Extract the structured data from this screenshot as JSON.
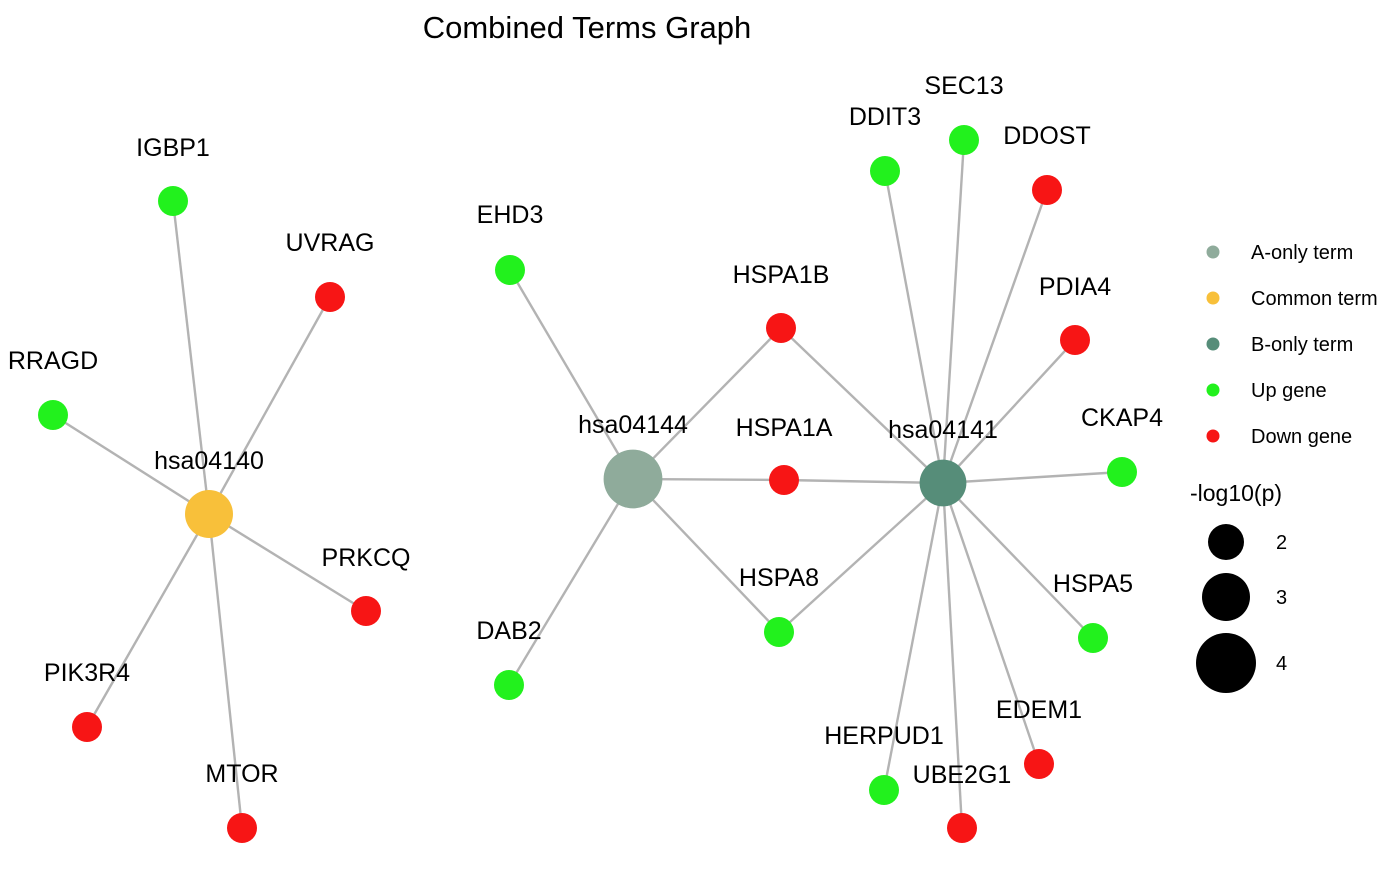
{
  "title": "Combined Terms Graph",
  "colors": {
    "a_only_term": "#8fab9b",
    "common_term": "#f8c03a",
    "b_only_term": "#568d79",
    "up_gene": "#22f11d",
    "down_gene": "#f71515",
    "edge": "#b3b3b3"
  },
  "nodes": [
    {
      "id": "hsa04140",
      "label": "hsa04140",
      "type": "common_term",
      "neglog10p": 3.0
    },
    {
      "id": "hsa04144",
      "label": "hsa04144",
      "type": "a_only_term",
      "neglog10p": 3.9
    },
    {
      "id": "hsa04141",
      "label": "hsa04141",
      "type": "b_only_term",
      "neglog10p": 2.9
    },
    {
      "id": "IGBP1",
      "label": "IGBP1",
      "type": "up_gene"
    },
    {
      "id": "UVRAG",
      "label": "UVRAG",
      "type": "down_gene"
    },
    {
      "id": "RRAGD",
      "label": "RRAGD",
      "type": "up_gene"
    },
    {
      "id": "PRKCQ",
      "label": "PRKCQ",
      "type": "down_gene"
    },
    {
      "id": "PIK3R4",
      "label": "PIK3R4",
      "type": "down_gene"
    },
    {
      "id": "MTOR",
      "label": "MTOR",
      "type": "down_gene"
    },
    {
      "id": "EHD3",
      "label": "EHD3",
      "type": "up_gene"
    },
    {
      "id": "DAB2",
      "label": "DAB2",
      "type": "up_gene"
    },
    {
      "id": "HSPA1B",
      "label": "HSPA1B",
      "type": "down_gene"
    },
    {
      "id": "HSPA1A",
      "label": "HSPA1A",
      "type": "down_gene"
    },
    {
      "id": "HSPA8",
      "label": "HSPA8",
      "type": "up_gene"
    },
    {
      "id": "DDIT3",
      "label": "DDIT3",
      "type": "up_gene"
    },
    {
      "id": "SEC13",
      "label": "SEC13",
      "type": "up_gene"
    },
    {
      "id": "DDOST",
      "label": "DDOST",
      "type": "down_gene"
    },
    {
      "id": "PDIA4",
      "label": "PDIA4",
      "type": "down_gene"
    },
    {
      "id": "CKAP4",
      "label": "CKAP4",
      "type": "up_gene"
    },
    {
      "id": "HSPA5",
      "label": "HSPA5",
      "type": "up_gene"
    },
    {
      "id": "EDEM1",
      "label": "EDEM1",
      "type": "down_gene"
    },
    {
      "id": "UBE2G1",
      "label": "UBE2G1",
      "type": "down_gene"
    },
    {
      "id": "HERPUD1",
      "label": "HERPUD1",
      "type": "up_gene"
    }
  ],
  "edges": [
    [
      "hsa04140",
      "IGBP1"
    ],
    [
      "hsa04140",
      "UVRAG"
    ],
    [
      "hsa04140",
      "RRAGD"
    ],
    [
      "hsa04140",
      "PRKCQ"
    ],
    [
      "hsa04140",
      "PIK3R4"
    ],
    [
      "hsa04140",
      "MTOR"
    ],
    [
      "hsa04144",
      "EHD3"
    ],
    [
      "hsa04144",
      "DAB2"
    ],
    [
      "hsa04144",
      "HSPA1B"
    ],
    [
      "hsa04144",
      "HSPA1A"
    ],
    [
      "hsa04144",
      "HSPA8"
    ],
    [
      "hsa04141",
      "HSPA1B"
    ],
    [
      "hsa04141",
      "HSPA1A"
    ],
    [
      "hsa04141",
      "HSPA8"
    ],
    [
      "hsa04141",
      "DDIT3"
    ],
    [
      "hsa04141",
      "SEC13"
    ],
    [
      "hsa04141",
      "DDOST"
    ],
    [
      "hsa04141",
      "PDIA4"
    ],
    [
      "hsa04141",
      "CKAP4"
    ],
    [
      "hsa04141",
      "HSPA5"
    ],
    [
      "hsa04141",
      "EDEM1"
    ],
    [
      "hsa04141",
      "UBE2G1"
    ],
    [
      "hsa04141",
      "HERPUD1"
    ]
  ],
  "legend": {
    "color_items": [
      {
        "type": "a_only_term",
        "label": "A-only term"
      },
      {
        "type": "common_term",
        "label": "Common term"
      },
      {
        "type": "b_only_term",
        "label": "B-only term"
      },
      {
        "type": "up_gene",
        "label": "Up gene"
      },
      {
        "type": "down_gene",
        "label": "Down gene"
      }
    ],
    "size_title": "-log10(p)",
    "size_items": [
      {
        "value": 2,
        "label": "2"
      },
      {
        "value": 3,
        "label": "3"
      },
      {
        "value": 4,
        "label": "4"
      }
    ]
  }
}
